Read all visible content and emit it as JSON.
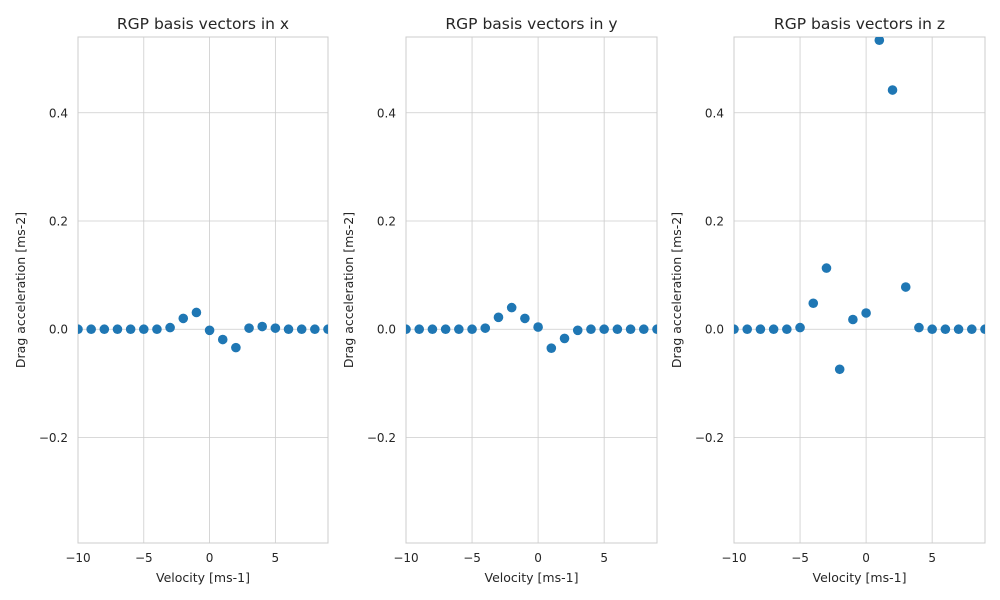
{
  "chart_data": [
    {
      "type": "scatter",
      "title": "RGP basis vectors in x",
      "xlabel": "Velocity [ms-1]",
      "ylabel": "Drag acceleration [ms-2]",
      "xlim": [
        -10,
        9
      ],
      "ylim": [
        -0.395,
        0.54
      ],
      "xticks": [
        -10,
        -5,
        0,
        5
      ],
      "yticks": [
        -0.2,
        0.0,
        0.2,
        0.4
      ],
      "xtick_labels": [
        "−10",
        "−5",
        "0",
        "5"
      ],
      "ytick_labels": [
        "−0.2",
        "0.0",
        "0.2",
        "0.4"
      ],
      "grid": true,
      "color": "#1f77b4",
      "x": [
        -10,
        -9,
        -8,
        -7,
        -6,
        -5,
        -4,
        -3,
        -2,
        -1,
        0,
        1,
        2,
        3,
        4,
        5,
        6,
        7,
        8,
        9
      ],
      "y": [
        0.0,
        0.0,
        0.0,
        0.0,
        0.0,
        0.0,
        0.0,
        0.003,
        0.02,
        0.031,
        -0.002,
        -0.019,
        -0.034,
        0.002,
        0.005,
        0.002,
        0.0,
        0.0,
        0.0,
        0.0
      ]
    },
    {
      "type": "scatter",
      "title": "RGP basis vectors in y",
      "xlabel": "Velocity [ms-1]",
      "ylabel": "Drag acceleration [ms-2]",
      "xlim": [
        -10,
        9
      ],
      "ylim": [
        -0.395,
        0.54
      ],
      "xticks": [
        -10,
        -5,
        0,
        5
      ],
      "yticks": [
        -0.2,
        0.0,
        0.2,
        0.4
      ],
      "xtick_labels": [
        "−10",
        "−5",
        "0",
        "5"
      ],
      "ytick_labels": [
        "−0.2",
        "0.0",
        "0.2",
        "0.4"
      ],
      "grid": true,
      "color": "#1f77b4",
      "x": [
        -10,
        -9,
        -8,
        -7,
        -6,
        -5,
        -4,
        -3,
        -2,
        -1,
        0,
        1,
        2,
        3,
        4,
        5,
        6,
        7,
        8,
        9
      ],
      "y": [
        0.0,
        0.0,
        0.0,
        0.0,
        0.0,
        0.0,
        0.002,
        0.022,
        0.04,
        0.02,
        0.004,
        -0.035,
        -0.017,
        -0.002,
        0.0,
        0.0,
        0.0,
        0.0,
        0.0,
        0.0
      ]
    },
    {
      "type": "scatter",
      "title": "RGP basis vectors in z",
      "xlabel": "Velocity [ms-1]",
      "ylabel": "Drag acceleration [ms-2]",
      "xlim": [
        -10,
        9
      ],
      "ylim": [
        -0.395,
        0.54
      ],
      "xticks": [
        -10,
        -5,
        0,
        5
      ],
      "yticks": [
        -0.2,
        0.0,
        0.2,
        0.4
      ],
      "xtick_labels": [
        "−10",
        "−5",
        "0",
        "5"
      ],
      "ytick_labels": [
        "−0.2",
        "0.0",
        "0.2",
        "0.4"
      ],
      "grid": true,
      "color": "#1f77b4",
      "x": [
        -10,
        -9,
        -8,
        -7,
        -6,
        -5,
        -4,
        -3,
        -2,
        -1,
        0,
        1,
        2,
        3,
        4,
        5,
        6,
        7,
        8,
        9
      ],
      "y": [
        0.0,
        0.0,
        0.0,
        0.0,
        0.0,
        0.003,
        0.048,
        0.113,
        -0.074,
        0.018,
        0.03,
        0.534,
        0.442,
        0.078,
        0.003,
        0.0,
        0.0,
        0.0,
        0.0,
        0.0
      ]
    }
  ]
}
